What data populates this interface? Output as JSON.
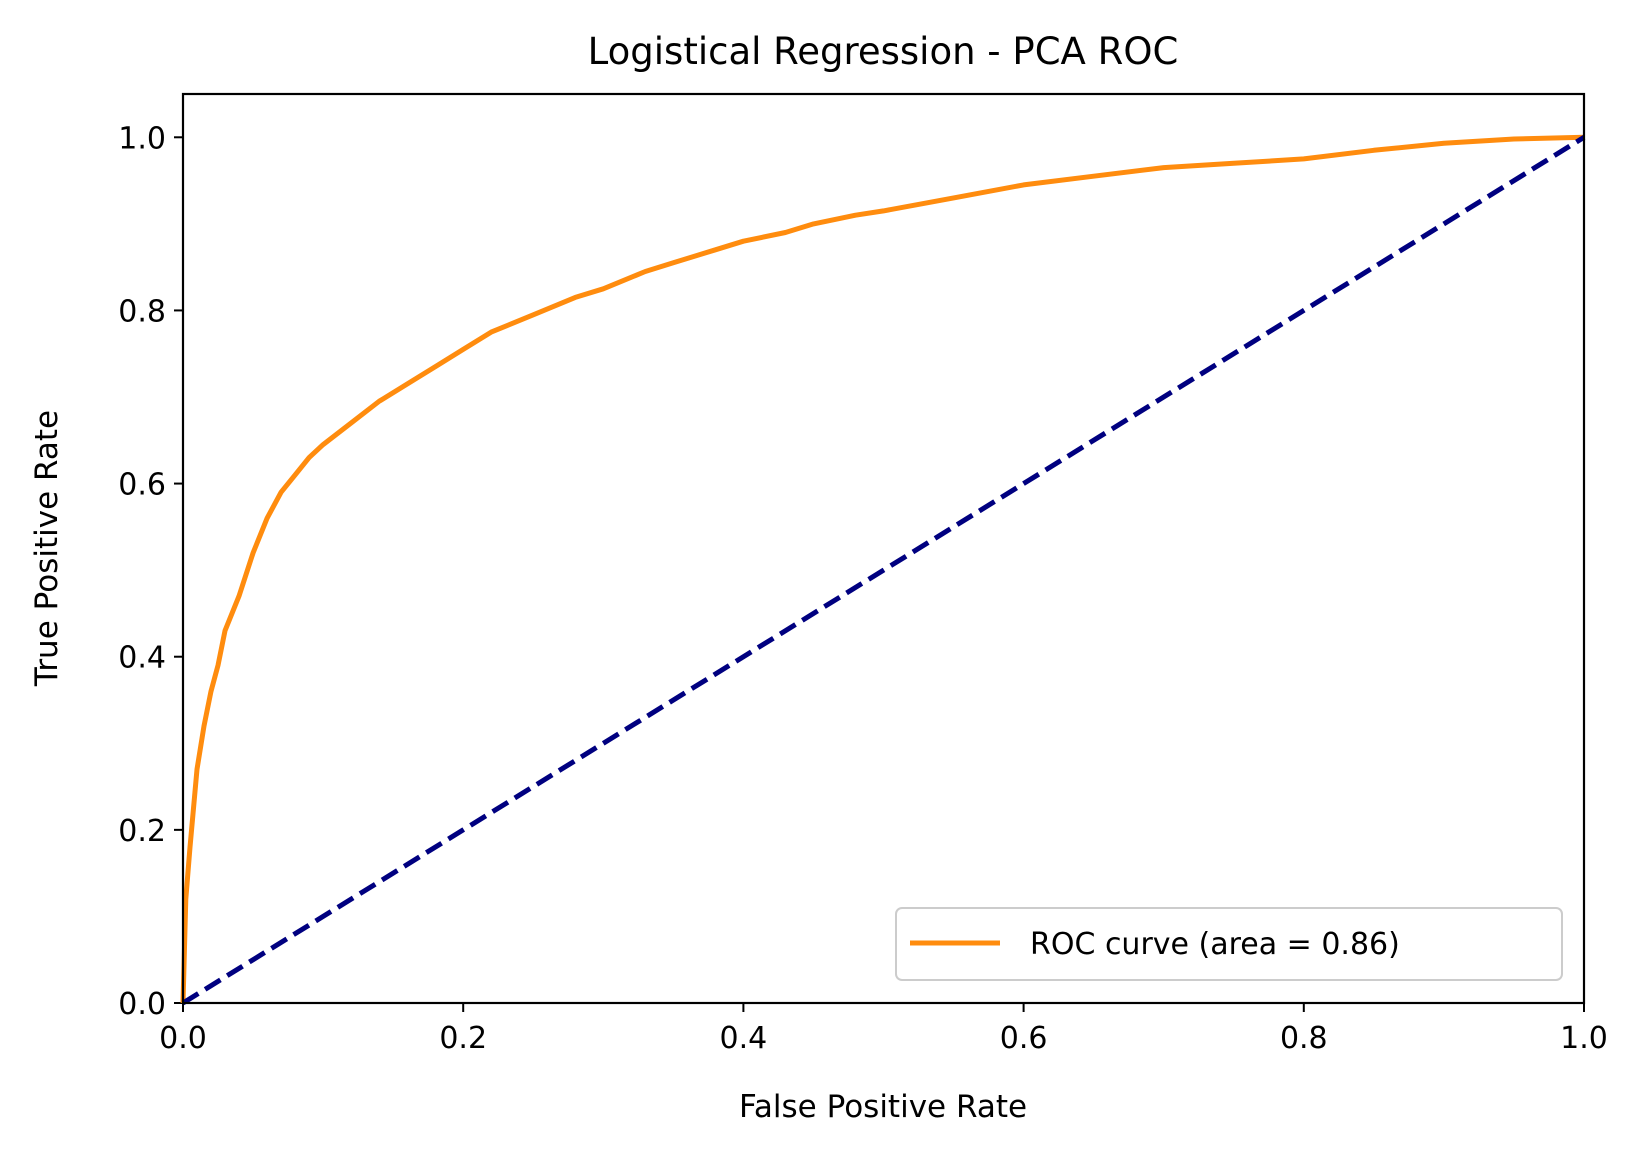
{
  "chart_data": {
    "type": "line",
    "title": "Logistical Regression - PCA ROC",
    "xlabel": "False Positive Rate",
    "ylabel": "True Positive Rate",
    "xlim": [
      0.0,
      1.0
    ],
    "ylim": [
      0.0,
      1.05
    ],
    "xticks": [
      "0.0",
      "0.2",
      "0.4",
      "0.6",
      "0.8",
      "1.0"
    ],
    "yticks": [
      "0.0",
      "0.2",
      "0.4",
      "0.6",
      "0.8",
      "1.0"
    ],
    "grid": false,
    "legend_position": "lower-right",
    "series": [
      {
        "name": "ROC curve (area = 0.86)",
        "color": "#ff8c0e",
        "style": "solid",
        "x": [
          0.0,
          0.002,
          0.005,
          0.01,
          0.015,
          0.02,
          0.025,
          0.03,
          0.04,
          0.05,
          0.06,
          0.07,
          0.08,
          0.09,
          0.1,
          0.12,
          0.14,
          0.16,
          0.18,
          0.2,
          0.22,
          0.25,
          0.28,
          0.3,
          0.33,
          0.35,
          0.38,
          0.4,
          0.43,
          0.45,
          0.48,
          0.5,
          0.55,
          0.6,
          0.65,
          0.7,
          0.75,
          0.8,
          0.85,
          0.9,
          0.95,
          1.0
        ],
        "y": [
          0.0,
          0.12,
          0.18,
          0.27,
          0.32,
          0.36,
          0.39,
          0.43,
          0.47,
          0.52,
          0.56,
          0.59,
          0.61,
          0.63,
          0.645,
          0.67,
          0.695,
          0.715,
          0.735,
          0.755,
          0.775,
          0.795,
          0.815,
          0.825,
          0.845,
          0.855,
          0.87,
          0.88,
          0.89,
          0.9,
          0.91,
          0.915,
          0.93,
          0.945,
          0.955,
          0.965,
          0.97,
          0.975,
          0.985,
          0.993,
          0.998,
          1.0
        ]
      },
      {
        "name": "",
        "color": "#000080",
        "style": "dashed",
        "x": [
          0.0,
          1.0
        ],
        "y": [
          0.0,
          1.0
        ]
      }
    ]
  }
}
